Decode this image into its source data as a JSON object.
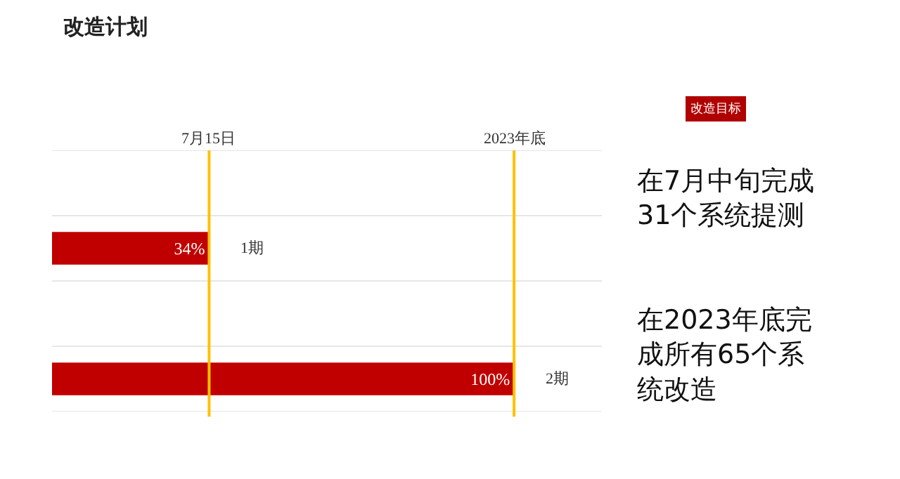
{
  "chart_data": {
    "type": "bar",
    "orientation": "horizontal",
    "title": "改造计划",
    "categories": [
      "1期",
      "2期"
    ],
    "values": [
      34,
      100
    ],
    "color": "#c00000",
    "value_labels": [
      "34%",
      "100%"
    ],
    "ref_lines": [
      {
        "axis": "x",
        "value": 34,
        "label": "7月15日",
        "color": "#ffc000"
      },
      {
        "axis": "x",
        "value": 100,
        "label": "2023年底",
        "color": "#ffc000"
      }
    ],
    "grid": "y",
    "tick_labels": false,
    "annotations": [
      "改造目标",
      "在7月中旬完成31个系统提测",
      "在2023年底完成所有65个系统改造"
    ]
  }
}
